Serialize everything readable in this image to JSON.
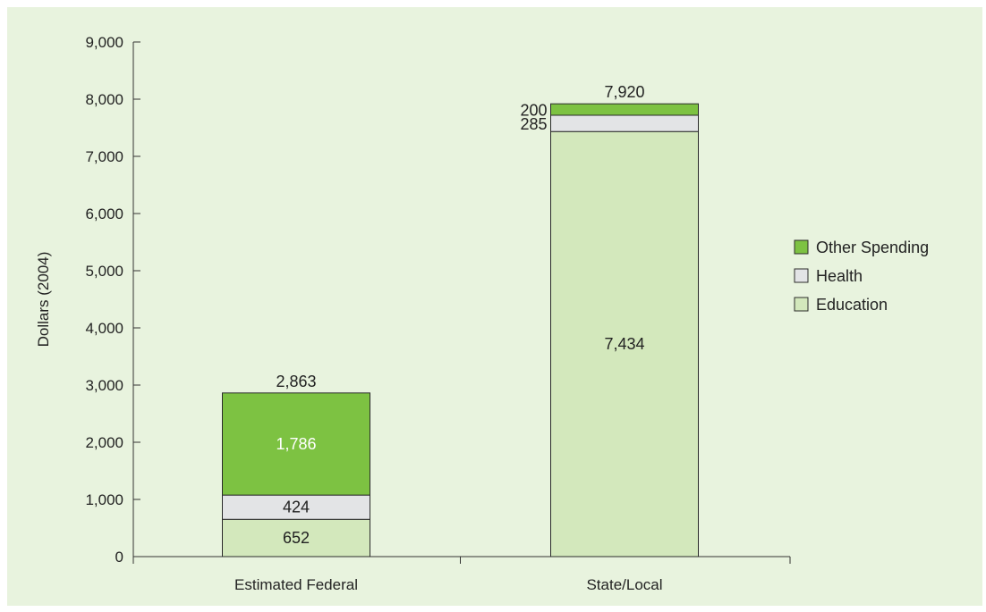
{
  "chart_data": {
    "type": "bar",
    "stacked": true,
    "title": "",
    "xlabel": "",
    "ylabel": "Dollars (2004)",
    "ylim": [
      0,
      9000
    ],
    "yticks": [
      0,
      1000,
      2000,
      3000,
      4000,
      5000,
      6000,
      7000,
      8000,
      9000
    ],
    "ytick_labels": [
      "0",
      "1,000",
      "2,000",
      "3,000",
      "4,000",
      "5,000",
      "6,000",
      "7,000",
      "8,000",
      "9,000"
    ],
    "categories": [
      "Estimated Federal",
      "State/Local"
    ],
    "series": [
      {
        "name": "Education",
        "color": "#d3e8bc",
        "values": [
          652,
          7434
        ],
        "value_labels": [
          "652",
          "7,434"
        ]
      },
      {
        "name": "Health",
        "color": "#e3e4e6",
        "values": [
          424,
          285
        ],
        "value_labels": [
          "424",
          "285"
        ]
      },
      {
        "name": "Other Spending",
        "color": "#7dc242",
        "values": [
          1786,
          200
        ],
        "value_labels": [
          "1,786",
          "200"
        ]
      }
    ],
    "totals": [
      2863,
      7920
    ],
    "total_labels": [
      "2,863",
      "7,920"
    ],
    "grid": false,
    "legend_position": "right",
    "legend_order": [
      "Other Spending",
      "Health",
      "Education"
    ],
    "background_color": "#e8f3de"
  }
}
